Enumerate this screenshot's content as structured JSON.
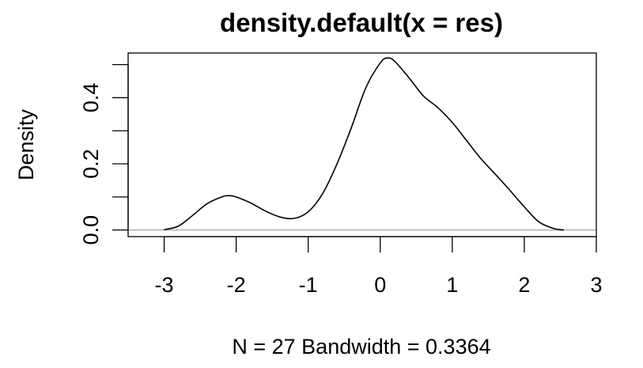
{
  "chart_data": {
    "type": "line",
    "title": "density.default(x = res)",
    "xlabel": "N = 27   Bandwidth = 0.3364",
    "ylabel": "Density",
    "xlim": [
      -3.5,
      3
    ],
    "ylim": [
      -0.02,
      0.535
    ],
    "x_ticks": [
      -3,
      -2,
      -1,
      0,
      1,
      2,
      3
    ],
    "y_ticks": [
      0.0,
      0.1,
      0.2,
      0.3,
      0.4,
      0.5
    ],
    "y_tick_labels": [
      {
        "value": 0.0,
        "label": "0.0"
      },
      {
        "value": 0.2,
        "label": "0.2"
      },
      {
        "value": 0.4,
        "label": "0.4"
      }
    ],
    "baseline": 0,
    "grid": false,
    "series": [
      {
        "x": [
          -3.0,
          -2.8,
          -2.6,
          -2.4,
          -2.2,
          -2.1,
          -2.0,
          -1.8,
          -1.6,
          -1.4,
          -1.2,
          -1.0,
          -0.8,
          -0.6,
          -0.4,
          -0.2,
          0.0,
          0.1,
          0.2,
          0.4,
          0.6,
          0.8,
          1.0,
          1.2,
          1.4,
          1.6,
          1.8,
          2.0,
          2.2,
          2.4,
          2.55
        ],
        "y": [
          0.001,
          0.012,
          0.045,
          0.08,
          0.1,
          0.104,
          0.1,
          0.082,
          0.058,
          0.04,
          0.035,
          0.055,
          0.11,
          0.2,
          0.31,
          0.43,
          0.505,
          0.52,
          0.51,
          0.46,
          0.405,
          0.37,
          0.325,
          0.27,
          0.215,
          0.168,
          0.12,
          0.07,
          0.025,
          0.005,
          0.0
        ]
      }
    ]
  }
}
